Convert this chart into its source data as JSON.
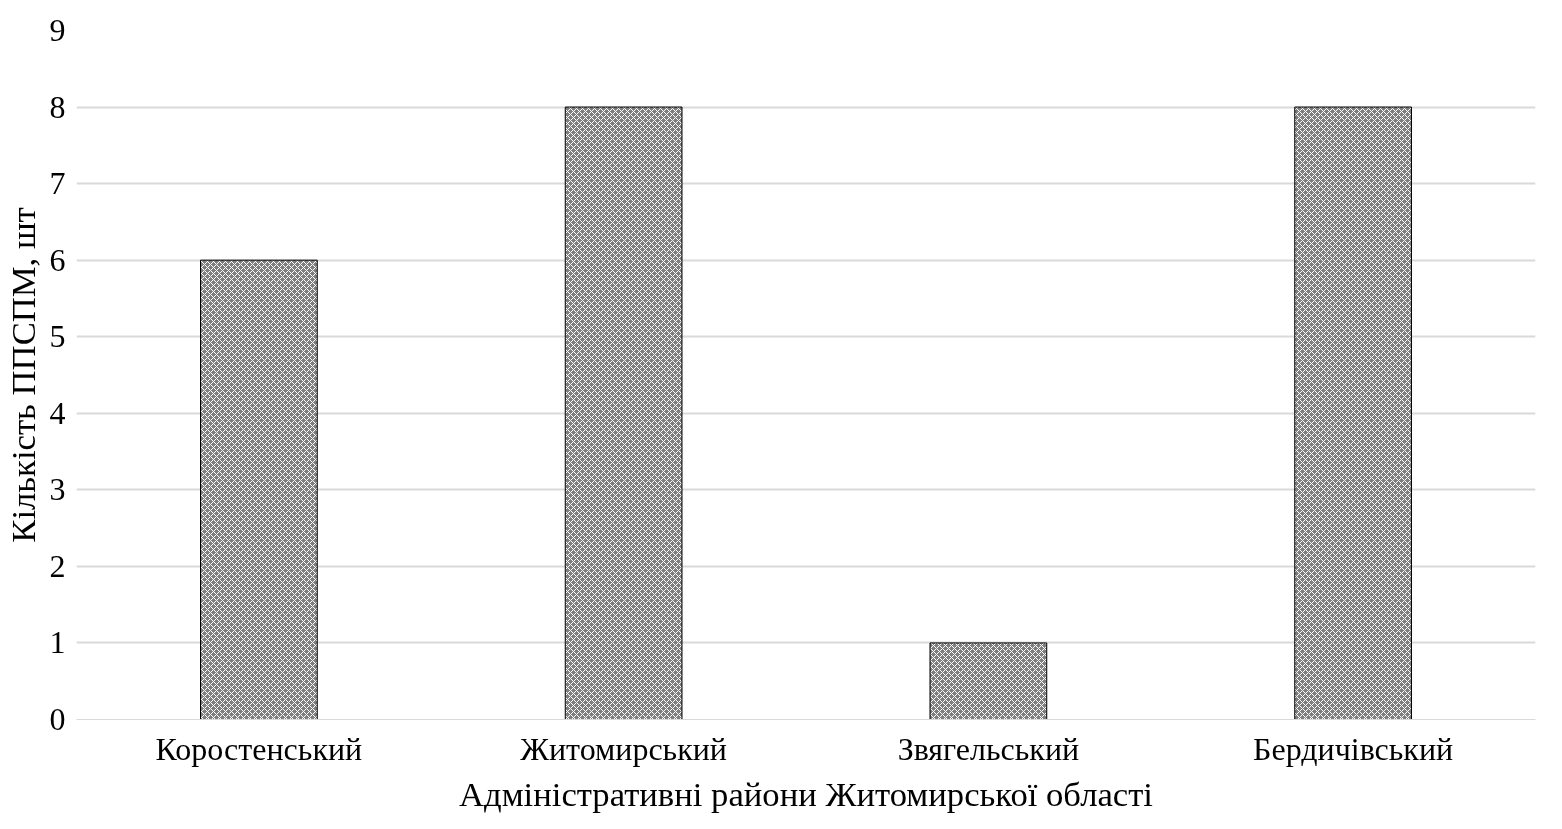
{
  "chart_data": {
    "type": "bar",
    "xlabel": "Адміністративні райони Житомирської області",
    "ylabel": "Кількість ППСПМ, шт",
    "categories": [
      "Коростенський",
      "Житомирський",
      "Звягельський",
      "Бердичівський"
    ],
    "values": [
      6,
      8,
      1,
      8
    ],
    "color": "#7f7f7f",
    "ylim": [
      0,
      9
    ],
    "yticks": [
      0,
      1,
      2,
      3,
      4,
      5,
      6,
      7,
      8,
      9
    ],
    "grid": "y"
  }
}
